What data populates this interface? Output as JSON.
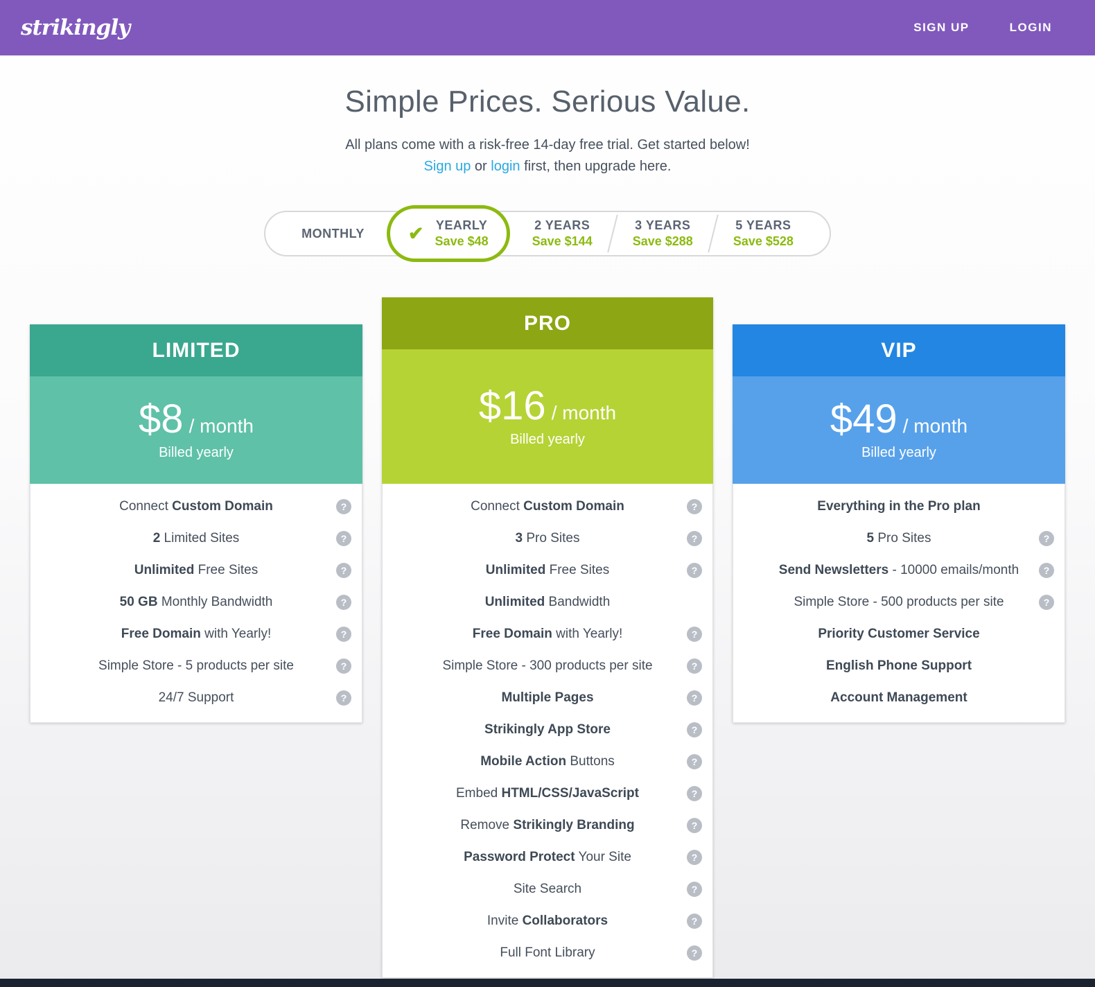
{
  "header": {
    "logo": "strikingly",
    "signup_label": "SIGN UP",
    "login_label": "LOGIN"
  },
  "hero": {
    "title": "Simple Prices. Serious Value.",
    "subtitle": "All plans come with a risk-free 14-day free trial. Get started below!",
    "line2_segments": [
      {
        "text": "Sign up",
        "link": true,
        "name": "signup-inline-link"
      },
      {
        "text": " or ",
        "link": false,
        "name": "line2-text"
      },
      {
        "text": "login",
        "link": true,
        "name": "login-inline-link"
      },
      {
        "text": " first, then upgrade here.",
        "link": false,
        "name": "line2-text"
      }
    ]
  },
  "billing_toggle": {
    "options": [
      {
        "label": "MONTHLY",
        "save": "",
        "selected": false
      },
      {
        "label": "YEARLY",
        "save": "Save $48",
        "selected": true
      },
      {
        "label": "2 YEARS",
        "save": "Save $144",
        "selected": false
      },
      {
        "label": "3 YEARS",
        "save": "Save $288",
        "selected": false
      },
      {
        "label": "5 YEARS",
        "save": "Save $528",
        "selected": false
      }
    ]
  },
  "plans": [
    {
      "name": "LIMITED",
      "price": "$8",
      "per": "/ month",
      "billed": "Billed yearly",
      "header_color": "#3aa78f",
      "price_color": "#5ec1a8",
      "featured": false,
      "features": [
        {
          "segments": [
            {
              "text": "Connect ",
              "bold": false
            },
            {
              "text": "Custom Domain",
              "bold": true
            }
          ],
          "help": true
        },
        {
          "segments": [
            {
              "text": "2",
              "bold": true
            },
            {
              "text": " Limited Sites",
              "bold": false
            }
          ],
          "help": true
        },
        {
          "segments": [
            {
              "text": "Unlimited",
              "bold": true
            },
            {
              "text": " Free Sites",
              "bold": false
            }
          ],
          "help": true
        },
        {
          "segments": [
            {
              "text": "50 GB",
              "bold": true
            },
            {
              "text": " Monthly Bandwidth",
              "bold": false
            }
          ],
          "help": true
        },
        {
          "segments": [
            {
              "text": "Free Domain",
              "bold": true
            },
            {
              "text": " with Yearly!",
              "bold": false
            }
          ],
          "help": true
        },
        {
          "segments": [
            {
              "text": "Simple Store - 5 products per site",
              "bold": false
            }
          ],
          "help": true
        },
        {
          "segments": [
            {
              "text": "24/7 Support",
              "bold": false
            }
          ],
          "help": true
        }
      ]
    },
    {
      "name": "PRO",
      "price": "$16",
      "per": "/ month",
      "billed": "Billed yearly",
      "header_color": "#8da613",
      "price_color": "#b5d335",
      "featured": true,
      "features": [
        {
          "segments": [
            {
              "text": "Connect ",
              "bold": false
            },
            {
              "text": "Custom Domain",
              "bold": true
            }
          ],
          "help": true
        },
        {
          "segments": [
            {
              "text": "3",
              "bold": true
            },
            {
              "text": " Pro Sites",
              "bold": false
            }
          ],
          "help": true
        },
        {
          "segments": [
            {
              "text": "Unlimited",
              "bold": true
            },
            {
              "text": " Free Sites",
              "bold": false
            }
          ],
          "help": true
        },
        {
          "segments": [
            {
              "text": "Unlimited",
              "bold": true
            },
            {
              "text": " Bandwidth",
              "bold": false
            }
          ],
          "help": false
        },
        {
          "segments": [
            {
              "text": "Free Domain",
              "bold": true
            },
            {
              "text": " with Yearly!",
              "bold": false
            }
          ],
          "help": true
        },
        {
          "segments": [
            {
              "text": "Simple Store - 300 products per site",
              "bold": false
            }
          ],
          "help": true
        },
        {
          "segments": [
            {
              "text": "Multiple Pages",
              "bold": true
            }
          ],
          "help": true
        },
        {
          "segments": [
            {
              "text": "Strikingly App Store",
              "bold": true
            }
          ],
          "help": true
        },
        {
          "segments": [
            {
              "text": "Mobile Action",
              "bold": true
            },
            {
              "text": " Buttons",
              "bold": false
            }
          ],
          "help": true
        },
        {
          "segments": [
            {
              "text": "Embed ",
              "bold": false
            },
            {
              "text": "HTML/CSS/JavaScript",
              "bold": true
            }
          ],
          "help": true
        },
        {
          "segments": [
            {
              "text": "Remove ",
              "bold": false
            },
            {
              "text": "Strikingly Branding",
              "bold": true
            }
          ],
          "help": true
        },
        {
          "segments": [
            {
              "text": "Password Protect",
              "bold": true
            },
            {
              "text": " Your Site",
              "bold": false
            }
          ],
          "help": true
        },
        {
          "segments": [
            {
              "text": "Site Search",
              "bold": false
            }
          ],
          "help": true
        },
        {
          "segments": [
            {
              "text": "Invite ",
              "bold": false
            },
            {
              "text": "Collaborators",
              "bold": true
            }
          ],
          "help": true
        },
        {
          "segments": [
            {
              "text": "Full Font Library",
              "bold": false
            }
          ],
          "help": true
        }
      ]
    },
    {
      "name": "VIP",
      "price": "$49",
      "per": "/ month",
      "billed": "Billed yearly",
      "header_color": "#2386e2",
      "price_color": "#57a1ea",
      "featured": false,
      "features": [
        {
          "segments": [
            {
              "text": "Everything in the Pro plan",
              "bold": true
            }
          ],
          "help": false
        },
        {
          "segments": [
            {
              "text": "5",
              "bold": true
            },
            {
              "text": " Pro Sites",
              "bold": false
            }
          ],
          "help": true
        },
        {
          "segments": [
            {
              "text": "Send Newsletters",
              "bold": true
            },
            {
              "text": " - 10000 emails/month",
              "bold": false
            }
          ],
          "help": true
        },
        {
          "segments": [
            {
              "text": "Simple Store - 500 products per site",
              "bold": false
            }
          ],
          "help": true
        },
        {
          "segments": [
            {
              "text": "Priority Customer Service",
              "bold": true
            }
          ],
          "help": false
        },
        {
          "segments": [
            {
              "text": "English Phone Support",
              "bold": true
            }
          ],
          "help": false
        },
        {
          "segments": [
            {
              "text": "Account Management",
              "bold": true
            }
          ],
          "help": false
        }
      ]
    }
  ],
  "icons": {
    "checkmark": "✔",
    "help": "?"
  },
  "colors": {
    "nav_purple": "#8159bd",
    "accent_green": "#8cba10",
    "link_blue": "#2aa9e0",
    "bottom_bar": "#1b2330"
  }
}
